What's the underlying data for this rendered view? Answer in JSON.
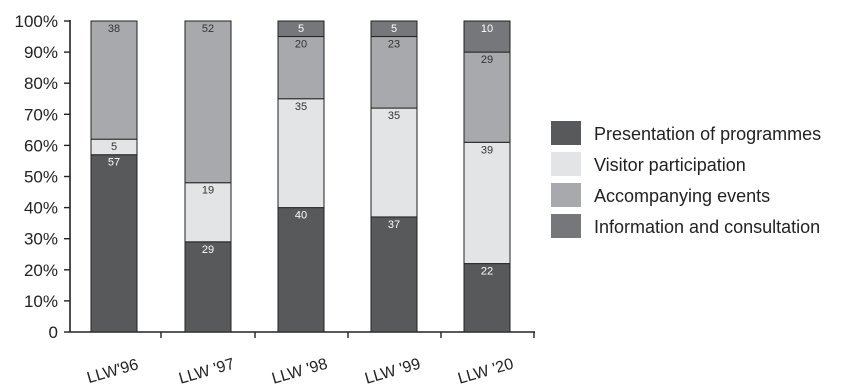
{
  "chart_data": {
    "type": "bar",
    "stacked": true,
    "categories": [
      "LLW'96",
      "LLW '97",
      "LLW '98",
      "LLW '99",
      "LLW '20"
    ],
    "series": [
      {
        "name": "Presentation of programmes",
        "color": "#58595b",
        "text_color": "#ffffff",
        "values": [
          57,
          29,
          40,
          37,
          22
        ]
      },
      {
        "name": "Visitor participation",
        "color": "#e3e4e6",
        "text_color": "#333333",
        "values": [
          5,
          19,
          35,
          35,
          39
        ]
      },
      {
        "name": "Accompanying events",
        "color": "#a7a9ac",
        "text_color": "#333333",
        "values": [
          38,
          52,
          20,
          23,
          29
        ]
      },
      {
        "name": "Information and consultation",
        "color": "#76777a",
        "text_color": "#ffffff",
        "values": [
          0,
          0,
          5,
          5,
          10
        ]
      }
    ],
    "y_ticks": [
      "0",
      "10%",
      "20%",
      "30%",
      "40%",
      "50%",
      "60%",
      "70%",
      "80%",
      "90%",
      "100%"
    ],
    "ylim": [
      0,
      100
    ],
    "legend_position": "right",
    "grid": false
  }
}
